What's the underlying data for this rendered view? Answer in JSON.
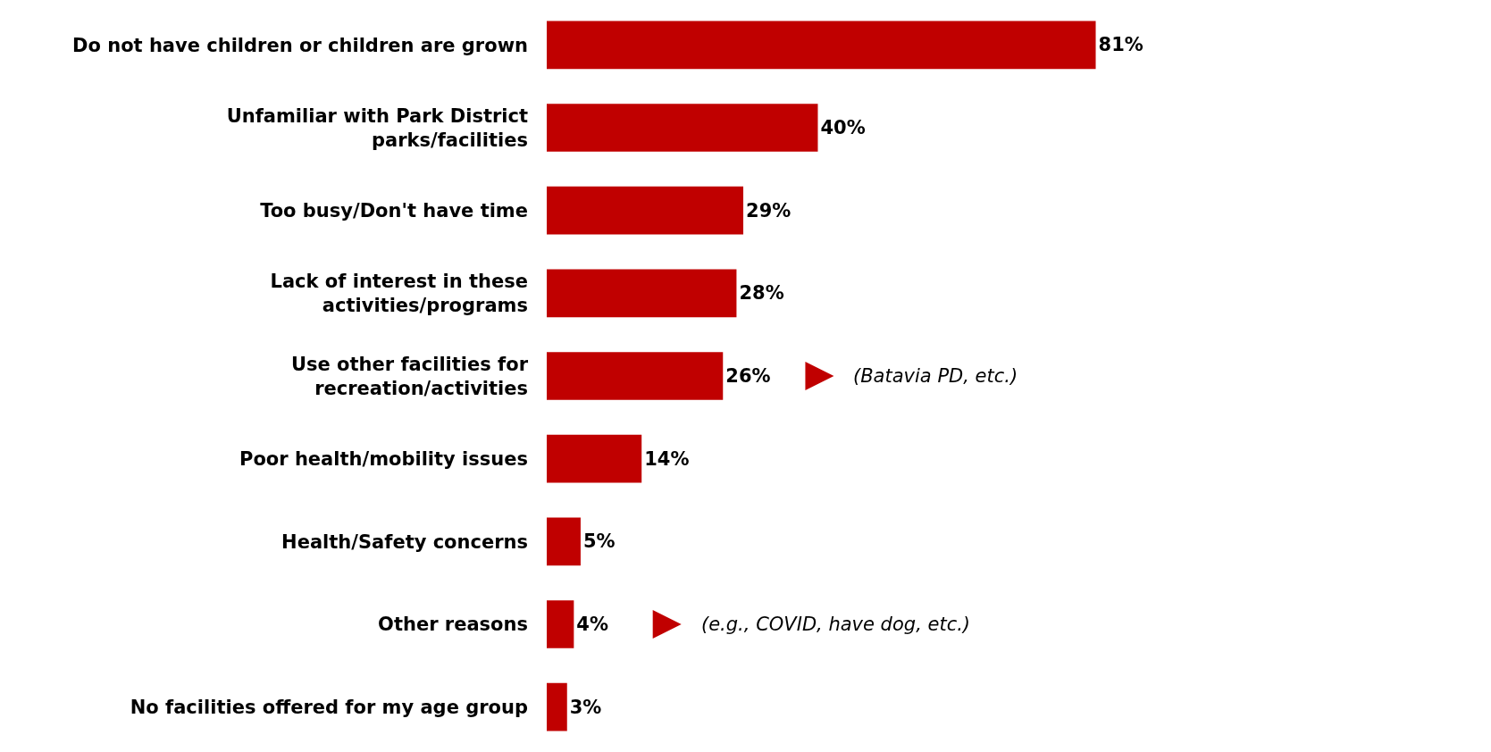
{
  "chart_data": {
    "type": "bar",
    "orientation": "horizontal",
    "categories": [
      "Do not have children or children are grown",
      "Unfamiliar with Park District\nparks/facilities",
      "Too busy/Don't have time",
      "Lack of interest in these\nactivities/programs",
      "Use other facilities for\nrecreation/activities",
      "Poor health/mobility issues",
      "Health/Safety concerns",
      "Other reasons",
      "No facilities offered for my age group"
    ],
    "values": [
      81,
      40,
      29,
      28,
      26,
      14,
      5,
      4,
      3
    ],
    "value_labels": [
      "81%",
      "40%",
      "29%",
      "28%",
      "26%",
      "14%",
      "5%",
      "4%",
      "3%"
    ],
    "color": "#c00000",
    "legend": false,
    "annotations": [
      "(Batavia PD, etc.)",
      "(e.g., COVID, have dog, etc.)"
    ]
  }
}
